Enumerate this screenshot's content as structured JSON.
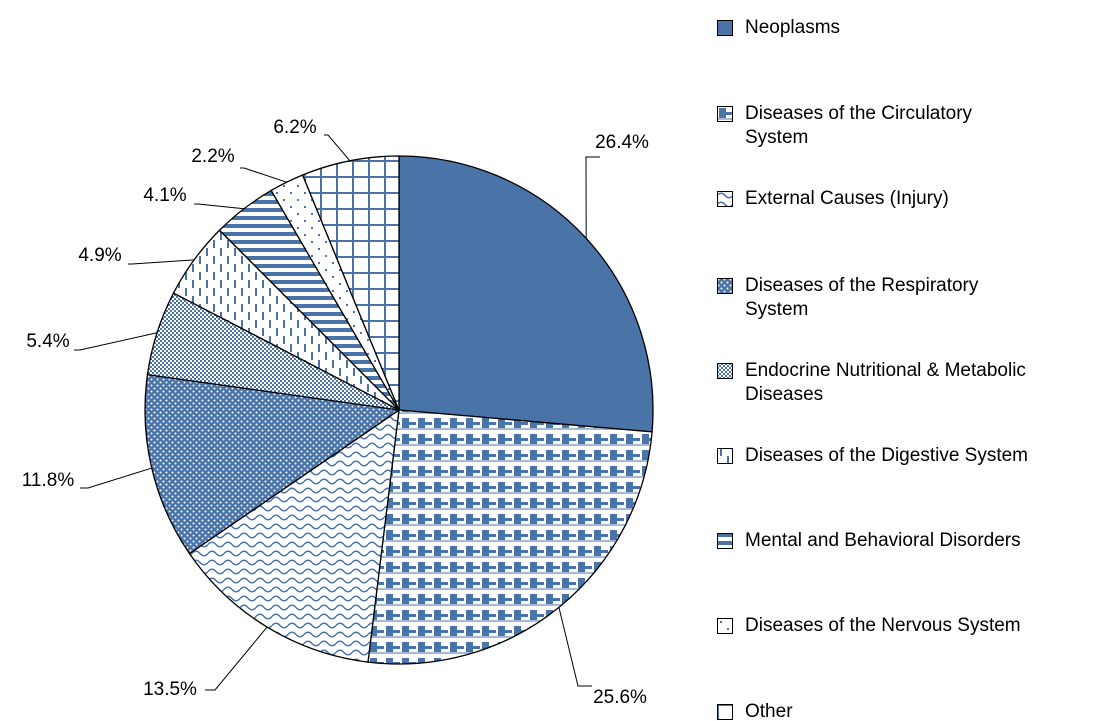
{
  "chart_data": {
    "type": "pie",
    "categories": [
      "Neoplasms",
      "Diseases of the Circulatory System",
      "External Causes (Injury)",
      "Diseases of the Respiratory System",
      "Endocrine Nutritional & Metabolic Diseases",
      "Diseases of the Digestive System",
      "Mental and Behavioral Disorders",
      "Diseases of the Nervous System",
      "Other"
    ],
    "values": [
      26.4,
      25.6,
      13.5,
      11.8,
      5.4,
      4.9,
      4.1,
      2.2,
      6.2
    ],
    "value_labels": [
      "26.4%",
      "25.6%",
      "13.5%",
      "11.8%",
      "5.4%",
      "4.9%",
      "4.1%",
      "2.2%",
      "6.2%"
    ],
    "color": "#4a74a8",
    "legend": "right"
  }
}
